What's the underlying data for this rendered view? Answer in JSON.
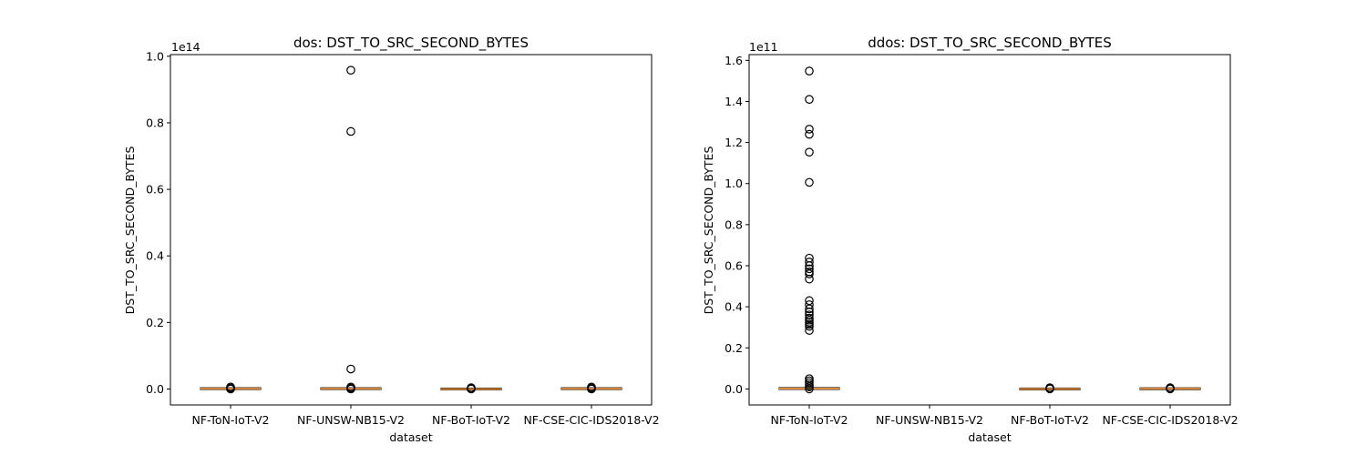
{
  "chart_data": [
    {
      "type": "box",
      "title": "dos: DST_TO_SRC_SECOND_BYTES",
      "xlabel": "dataset",
      "ylabel": "DST_TO_SRC_SECOND_BYTES",
      "offset_text": "1e14",
      "categories": [
        "NF-ToN-IoT-V2",
        "NF-UNSW-NB15-V2",
        "NF-BoT-IoT-V2",
        "NF-CSE-CIC-IDS2018-V2"
      ],
      "yticks": [
        0.0,
        0.2,
        0.4,
        0.6,
        0.8,
        1.0
      ],
      "ytick_labels": [
        "0.0",
        "0.2",
        "0.4",
        "0.6",
        "0.8",
        "1.0"
      ],
      "ylim": [
        -0.048,
        1.005
      ],
      "grid": false,
      "boxes": [
        {
          "category": "NF-ToN-IoT-V2",
          "median": 0.001,
          "outliers": [
            0.0,
            0.003,
            0.006
          ]
        },
        {
          "category": "NF-UNSW-NB15-V2",
          "median": 0.001,
          "outliers": [
            0.958,
            0.774,
            0.06,
            0.006,
            0.003,
            0.0
          ]
        },
        {
          "category": "NF-BoT-IoT-V2",
          "median": 0.0,
          "outliers": [
            0.0,
            0.002,
            0.004
          ]
        },
        {
          "category": "NF-CSE-CIC-IDS2018-V2",
          "median": 0.001,
          "outliers": [
            0.0,
            0.003,
            0.006
          ]
        }
      ]
    },
    {
      "type": "box",
      "title": "ddos: DST_TO_SRC_SECOND_BYTES",
      "xlabel": "dataset",
      "ylabel": "DST_TO_SRC_SECOND_BYTES",
      "offset_text": "1e11",
      "categories": [
        "NF-ToN-IoT-V2",
        "NF-UNSW-NB15-V2",
        "NF-BoT-IoT-V2",
        "NF-CSE-CIC-IDS2018-V2"
      ],
      "yticks": [
        0.0,
        0.2,
        0.4,
        0.6,
        0.8,
        1.0,
        1.2,
        1.4,
        1.6
      ],
      "ytick_labels": [
        "0.0",
        "0.2",
        "0.4",
        "0.6",
        "0.8",
        "1.0",
        "1.2",
        "1.4",
        "1.6"
      ],
      "ylim": [
        -0.078,
        1.628
      ],
      "grid": false,
      "boxes": [
        {
          "category": "NF-ToN-IoT-V2",
          "median": 0.002,
          "outliers": [
            1.548,
            1.41,
            1.265,
            1.24,
            1.153,
            1.006,
            0.637,
            0.618,
            0.6,
            0.585,
            0.57,
            0.56,
            0.535,
            0.43,
            0.41,
            0.39,
            0.375,
            0.36,
            0.345,
            0.335,
            0.325,
            0.315,
            0.305,
            0.285,
            0.05,
            0.04,
            0.03,
            0.02,
            0.01,
            0.0
          ]
        },
        {
          "category": "NF-UNSW-NB15-V2"
        },
        {
          "category": "NF-BoT-IoT-V2",
          "median": 0.0,
          "outliers": [
            0.0,
            0.003,
            0.006
          ]
        },
        {
          "category": "NF-CSE-CIC-IDS2018-V2",
          "median": 0.001,
          "outliers": [
            0.0,
            0.003,
            0.006
          ]
        }
      ]
    }
  ],
  "colors": {
    "median": "#e08a3c",
    "box": "#000000",
    "flier_edge": "#000000"
  }
}
